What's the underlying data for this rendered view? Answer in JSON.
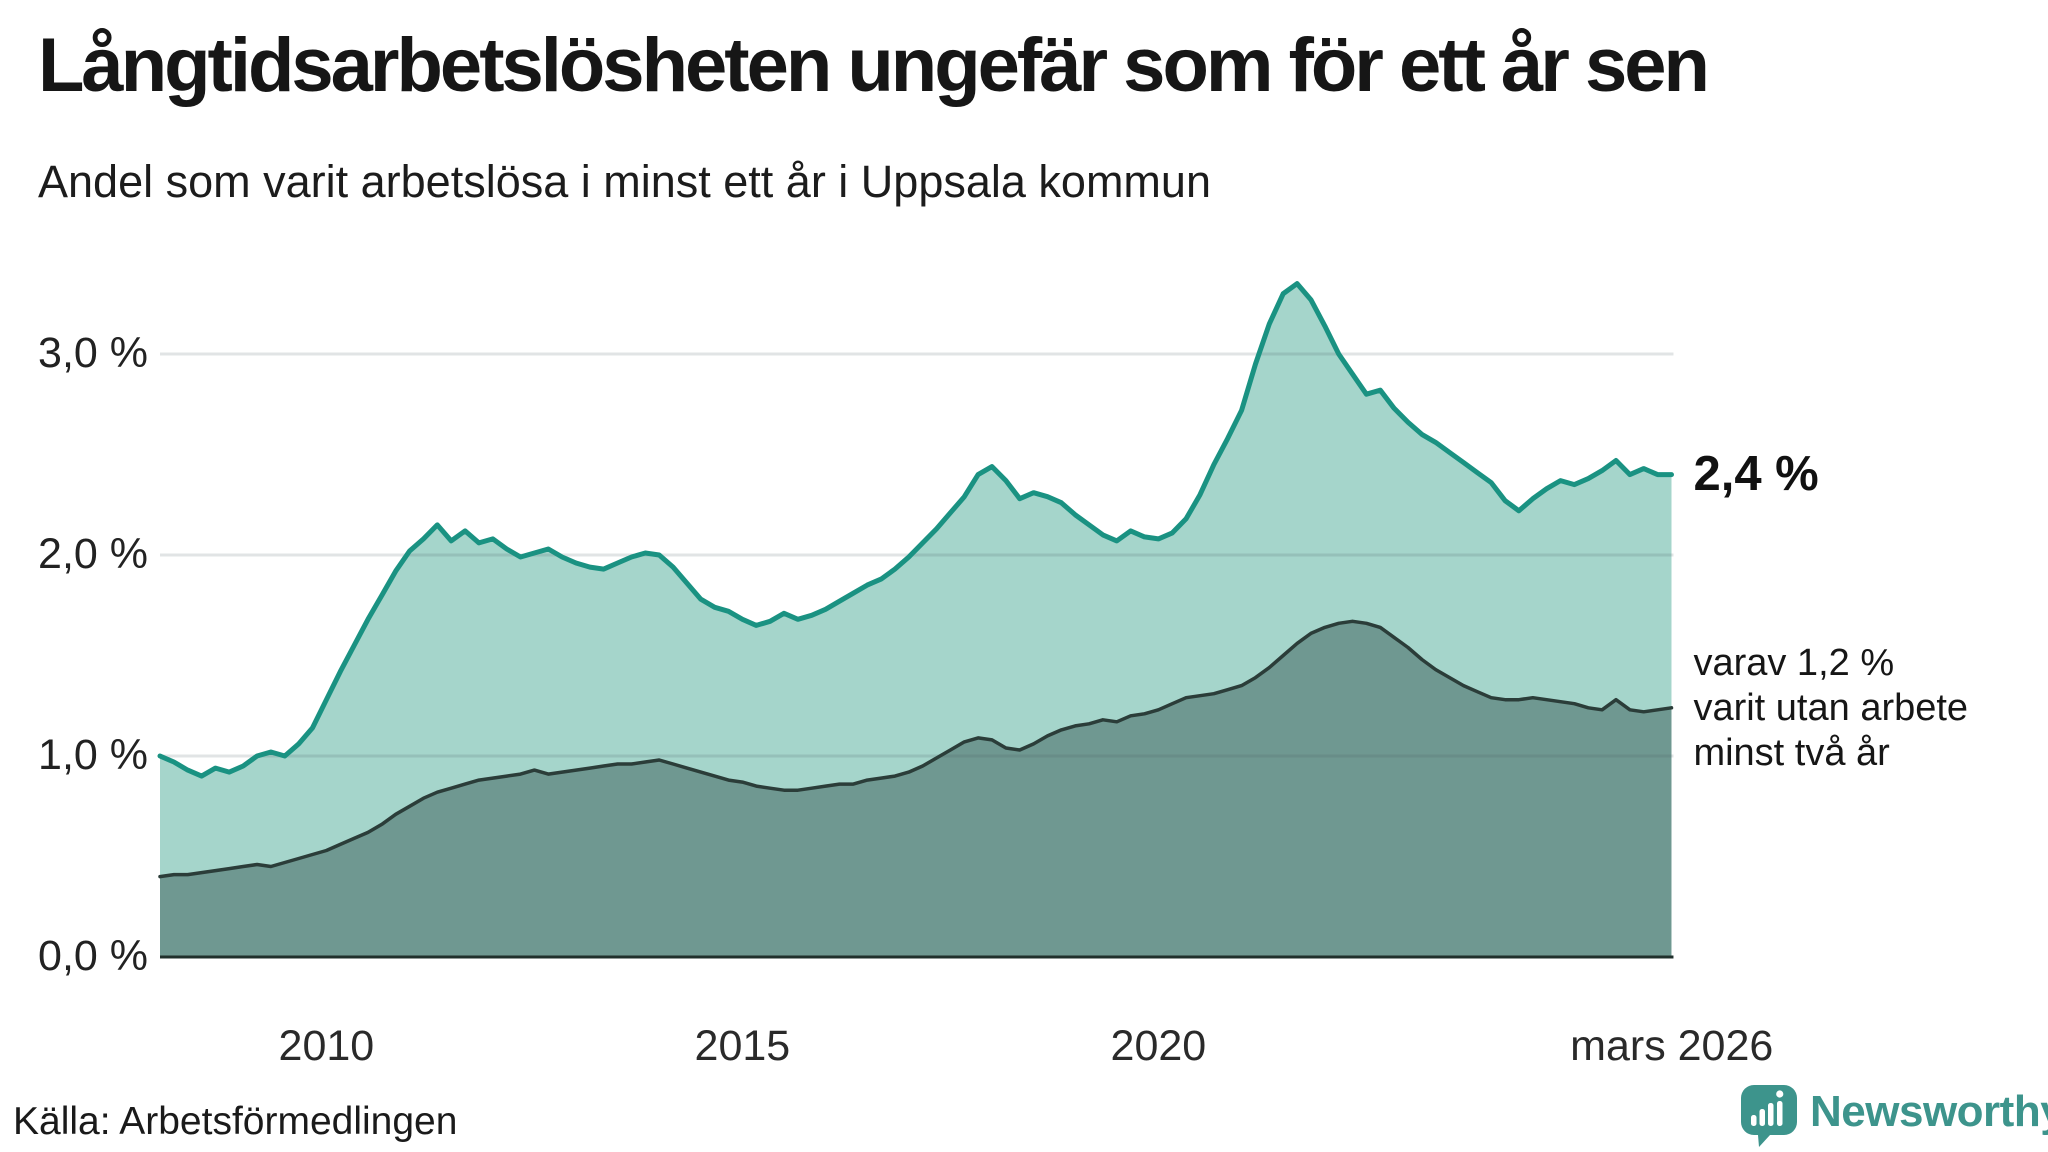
{
  "header": {
    "title": "Långtidsarbetslösheten ungefär som för ett år sen",
    "subtitle": "Andel som varit arbetslösa i minst ett år i Uppsala kommun"
  },
  "chart": {
    "y_ticks": [
      {
        "label": "0,0 %",
        "value": 0
      },
      {
        "label": "1,0 %",
        "value": 1
      },
      {
        "label": "2,0 %",
        "value": 2
      },
      {
        "label": "3,0 %",
        "value": 3
      }
    ],
    "x_ticks": [
      {
        "label": "2010",
        "year": 2010
      },
      {
        "label": "2015",
        "year": 2015
      },
      {
        "label": "2020",
        "year": 2020
      },
      {
        "label": "mars 2026",
        "year": 2026.17
      }
    ],
    "end_value_label": "2,4 %",
    "annotation_lines": [
      "varav 1,2 %",
      "varit utan arbete",
      "minst två år"
    ],
    "colors": {
      "line_one_year": "#1a9282",
      "fill_one_year": "#a5d5cb",
      "line_two_year": "#2b3d39",
      "fill_two_year": "#6f9891",
      "axis_line": "#20302c",
      "gridline": "rgba(70,90,95,0.16)",
      "logo_teal": "#3d948c"
    }
  },
  "chart_data": {
    "type": "area",
    "title": "Långtidsarbetslösheten ungefär som för ett år sen",
    "subtitle": "Andel som varit arbetslösa i minst ett år i Uppsala kommun",
    "unit": "%",
    "x_start_year": 2008.0,
    "x_step_years": 0.1667,
    "x_end_label": "mars 2026",
    "ylim": [
      0,
      3.5
    ],
    "ytick_values": [
      0,
      1,
      2,
      3
    ],
    "grid": true,
    "series": [
      {
        "name": "Andel arbetslösa minst ett år",
        "end_value": 2.4,
        "values": [
          1.0,
          0.97,
          0.93,
          0.9,
          0.94,
          0.92,
          0.95,
          1.0,
          1.02,
          1.0,
          1.06,
          1.14,
          1.28,
          1.42,
          1.55,
          1.68,
          1.8,
          1.92,
          2.02,
          2.08,
          2.15,
          2.07,
          2.12,
          2.06,
          2.08,
          2.03,
          1.99,
          2.01,
          2.03,
          1.99,
          1.96,
          1.94,
          1.93,
          1.96,
          1.99,
          2.01,
          2.0,
          1.94,
          1.86,
          1.78,
          1.74,
          1.72,
          1.68,
          1.65,
          1.67,
          1.71,
          1.68,
          1.7,
          1.73,
          1.77,
          1.81,
          1.85,
          1.88,
          1.93,
          1.99,
          2.06,
          2.13,
          2.21,
          2.29,
          2.4,
          2.44,
          2.37,
          2.28,
          2.31,
          2.29,
          2.26,
          2.2,
          2.15,
          2.1,
          2.07,
          2.12,
          2.09,
          2.08,
          2.11,
          2.18,
          2.3,
          2.45,
          2.58,
          2.72,
          2.95,
          3.15,
          3.3,
          3.35,
          3.27,
          3.14,
          3.0,
          2.9,
          2.8,
          2.82,
          2.73,
          2.66,
          2.6,
          2.56,
          2.51,
          2.46,
          2.41,
          2.36,
          2.27,
          2.22,
          2.28,
          2.33,
          2.37,
          2.35,
          2.38,
          2.42,
          2.47,
          2.4,
          2.43,
          2.4,
          2.4
        ]
      },
      {
        "name": "varav utan arbete minst två år",
        "end_value": 1.2,
        "values": [
          0.4,
          0.41,
          0.41,
          0.42,
          0.43,
          0.44,
          0.45,
          0.46,
          0.45,
          0.47,
          0.49,
          0.51,
          0.53,
          0.56,
          0.59,
          0.62,
          0.66,
          0.71,
          0.75,
          0.79,
          0.82,
          0.84,
          0.86,
          0.88,
          0.89,
          0.9,
          0.91,
          0.93,
          0.91,
          0.92,
          0.93,
          0.94,
          0.95,
          0.96,
          0.96,
          0.97,
          0.98,
          0.96,
          0.94,
          0.92,
          0.9,
          0.88,
          0.87,
          0.85,
          0.84,
          0.83,
          0.83,
          0.84,
          0.85,
          0.86,
          0.86,
          0.88,
          0.89,
          0.9,
          0.92,
          0.95,
          0.99,
          1.03,
          1.07,
          1.09,
          1.08,
          1.04,
          1.03,
          1.06,
          1.1,
          1.13,
          1.15,
          1.16,
          1.18,
          1.17,
          1.2,
          1.21,
          1.23,
          1.26,
          1.29,
          1.3,
          1.31,
          1.33,
          1.35,
          1.39,
          1.44,
          1.5,
          1.56,
          1.61,
          1.64,
          1.66,
          1.67,
          1.66,
          1.64,
          1.59,
          1.54,
          1.48,
          1.43,
          1.39,
          1.35,
          1.32,
          1.29,
          1.28,
          1.28,
          1.29,
          1.28,
          1.27,
          1.26,
          1.24,
          1.23,
          1.28,
          1.23,
          1.22,
          1.23,
          1.24
        ]
      }
    ]
  },
  "footer": {
    "source": "Källa: Arbetsförmedlingen",
    "logo_text": "Newsworthy"
  }
}
